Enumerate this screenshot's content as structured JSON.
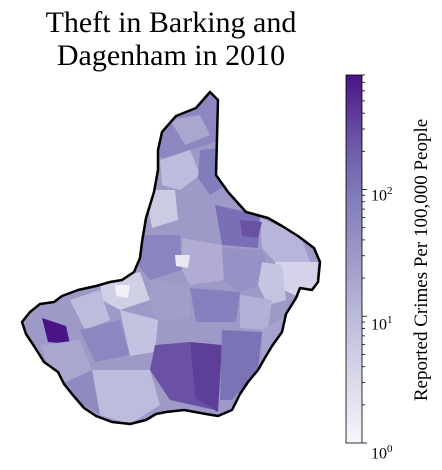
{
  "title_line1": "Theft in Barking and",
  "title_line2": "Dagenham in 2010",
  "colorbar": {
    "label": "Reported Crimes Per 100,000 People",
    "scale": "log",
    "range": [
      1,
      800
    ],
    "ticks": [
      {
        "base": "10",
        "exp": "0",
        "value": 1
      },
      {
        "base": "10",
        "exp": "1",
        "value": 10
      },
      {
        "base": "10",
        "exp": "2",
        "value": 100
      }
    ],
    "colormap": [
      "#f7f6fb",
      "#dadaeb",
      "#bcbddc",
      "#9e9ac8",
      "#807dba",
      "#6a51a3",
      "#4a1486"
    ]
  },
  "colors": {
    "boundary": "#000000",
    "background": "#ffffff"
  }
}
